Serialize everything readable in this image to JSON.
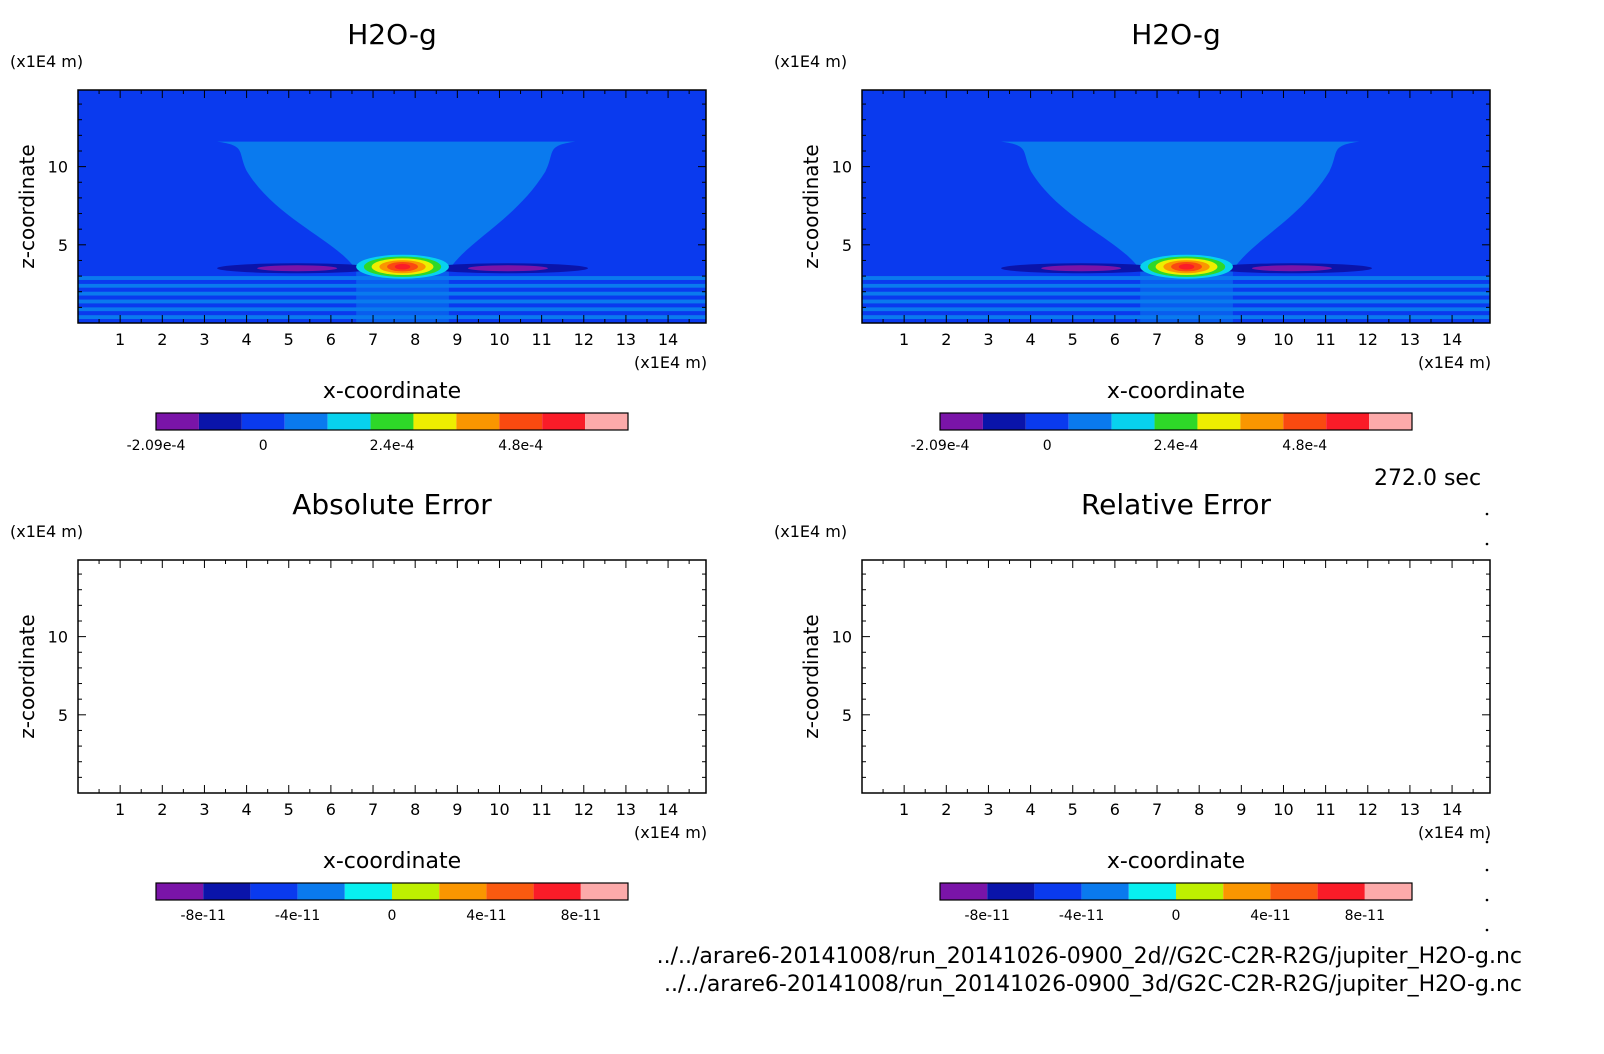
{
  "colors": {
    "background": "#ffffff",
    "field_levels": [
      "#7a14a8",
      "#0a14aa",
      "#0a3aee",
      "#0a7aee",
      "#08d2ee",
      "#2ed828",
      "#eeee00",
      "#fa9600",
      "#fa4a10",
      "#fa1c28",
      "#fcaaaa"
    ],
    "error_levels": [
      "#7a14a8",
      "#0a14aa",
      "#0a3aee",
      "#0a7aee",
      "#08f0f0",
      "#bef000",
      "#fa9600",
      "#fa5a10",
      "#fa1c28",
      "#fcaaaa"
    ]
  },
  "time_label": "272.0 sec",
  "file_paths": [
    "../../arare6-20141008/run_20141026-0900_2d//G2C-C2R-R2G/jupiter_H2O-g.nc",
    "../../arare6-20141008/run_20141026-0900_3d/G2C-C2R-R2G/jupiter_H2O-g.nc"
  ],
  "chart_data": [
    {
      "type": "heatmap",
      "title": "H2O-g",
      "xlabel": "x-coordinate",
      "ylabel": "z-coordinate",
      "x_unit": "(x1E4 m)",
      "y_unit": "(x1E4 m)",
      "xlim": [
        0,
        14.9
      ],
      "ylim": [
        0,
        14.9
      ],
      "x_ticks": [
        1,
        2,
        3,
        4,
        5,
        6,
        7,
        8,
        9,
        10,
        11,
        12,
        13,
        14
      ],
      "y_ticks": [
        5,
        10
      ],
      "grid": false,
      "field": {
        "background_level": 2,
        "plume": {
          "level": 3,
          "top_z": 11.6,
          "top_x": [
            3.3,
            11.8
          ],
          "waist_z": 3.4,
          "waist_x": [
            6.6,
            8.8
          ],
          "center_x": 7.7
        },
        "core": {
          "center_x": 7.7,
          "center_z": 3.6,
          "half_width": 1.1,
          "rings": [
            4,
            5,
            6,
            7,
            8,
            9
          ]
        },
        "side_lobes": [
          {
            "center_x": 5.2,
            "center_z": 3.5,
            "half_width": 1.9,
            "levels": [
              1,
              0
            ]
          },
          {
            "center_x": 10.2,
            "center_z": 3.5,
            "half_width": 1.9,
            "levels": [
              1,
              0
            ]
          }
        ],
        "bands": {
          "z_top": 3.0,
          "count": 6,
          "levels": [
            3,
            2
          ]
        }
      },
      "colorbar": {
        "levels": 11,
        "tick_labels": [
          "-2.09e-4",
          "0",
          "2.4e-4",
          "4.8e-4"
        ],
        "tick_level_positions": [
          0,
          2.5,
          5.5,
          8.5
        ]
      }
    },
    {
      "type": "heatmap",
      "title": "H2O-g",
      "xlabel": "x-coordinate",
      "ylabel": "z-coordinate",
      "x_unit": "(x1E4 m)",
      "y_unit": "(x1E4 m)",
      "xlim": [
        0,
        14.9
      ],
      "ylim": [
        0,
        14.9
      ],
      "x_ticks": [
        1,
        2,
        3,
        4,
        5,
        6,
        7,
        8,
        9,
        10,
        11,
        12,
        13,
        14
      ],
      "y_ticks": [
        5,
        10
      ],
      "grid": false,
      "field": {
        "background_level": 2,
        "plume": {
          "level": 3,
          "top_z": 11.6,
          "top_x": [
            3.3,
            11.8
          ],
          "waist_z": 3.4,
          "waist_x": [
            6.6,
            8.8
          ],
          "center_x": 7.7
        },
        "core": {
          "center_x": 7.7,
          "center_z": 3.6,
          "half_width": 1.1,
          "rings": [
            4,
            5,
            6,
            7,
            8,
            9
          ]
        },
        "side_lobes": [
          {
            "center_x": 5.2,
            "center_z": 3.5,
            "half_width": 1.9,
            "levels": [
              1,
              0
            ]
          },
          {
            "center_x": 10.2,
            "center_z": 3.5,
            "half_width": 1.9,
            "levels": [
              1,
              0
            ]
          }
        ],
        "bands": {
          "z_top": 3.0,
          "count": 6,
          "levels": [
            3,
            2
          ]
        }
      },
      "colorbar": {
        "levels": 11,
        "tick_labels": [
          "-2.09e-4",
          "0",
          "2.4e-4",
          "4.8e-4"
        ],
        "tick_level_positions": [
          0,
          2.5,
          5.5,
          8.5
        ]
      }
    },
    {
      "type": "heatmap",
      "title": "Absolute Error",
      "xlabel": "x-coordinate",
      "ylabel": "z-coordinate",
      "x_unit": "(x1E4 m)",
      "y_unit": "(x1E4 m)",
      "xlim": [
        0,
        14.9
      ],
      "ylim": [
        0,
        14.9
      ],
      "x_ticks": [
        1,
        2,
        3,
        4,
        5,
        6,
        7,
        8,
        9,
        10,
        11,
        12,
        13,
        14
      ],
      "y_ticks": [
        5,
        10
      ],
      "grid": false,
      "field": null,
      "colorbar": {
        "levels": 10,
        "tick_labels": [
          "-8e-11",
          "-4e-11",
          "0",
          "4e-11",
          "8e-11"
        ],
        "tick_level_positions": [
          1,
          3,
          5,
          7,
          9
        ]
      }
    },
    {
      "type": "heatmap",
      "title": "Relative Error",
      "xlabel": "x-coordinate",
      "ylabel": "z-coordinate",
      "x_unit": "(x1E4 m)",
      "y_unit": "(x1E4 m)",
      "xlim": [
        0,
        14.9
      ],
      "ylim": [
        0,
        14.9
      ],
      "x_ticks": [
        1,
        2,
        3,
        4,
        5,
        6,
        7,
        8,
        9,
        10,
        11,
        12,
        13,
        14
      ],
      "y_ticks": [
        5,
        10
      ],
      "grid": false,
      "field": null,
      "colorbar": {
        "levels": 10,
        "tick_labels": [
          "-8e-11",
          "-4e-11",
          "0",
          "4e-11",
          "8e-11"
        ],
        "tick_level_positions": [
          1,
          3,
          5,
          7,
          9
        ]
      }
    }
  ]
}
